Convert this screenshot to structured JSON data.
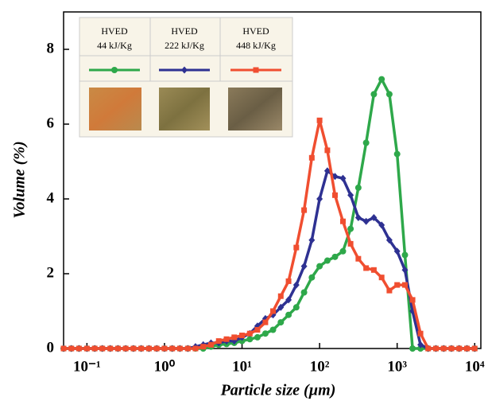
{
  "chart_data": {
    "type": "line",
    "x_scale": "log",
    "x_label": "Particle size (µm)",
    "y_label": "Volume (%)",
    "legend_title": "HVED",
    "x": [
      0.05,
      0.063,
      0.079,
      0.1,
      0.126,
      0.158,
      0.2,
      0.251,
      0.316,
      0.398,
      0.501,
      0.631,
      0.794,
      1,
      1.26,
      1.58,
      2,
      2.51,
      3.16,
      3.98,
      5.01,
      6.31,
      7.94,
      10,
      12.6,
      15.8,
      20,
      25.1,
      31.6,
      39.8,
      50.1,
      63.1,
      79.4,
      100,
      126,
      158,
      200,
      251,
      316,
      398,
      501,
      631,
      794,
      1000,
      1260,
      1580,
      2000,
      2510,
      3160,
      3980,
      5010,
      6310,
      7940,
      10000
    ],
    "series": [
      {
        "name": "44 kJ/Kg",
        "color": "#2ea84a",
        "marker": "circle",
        "values": [
          0,
          0,
          0,
          0,
          0,
          0,
          0,
          0,
          0,
          0,
          0,
          0,
          0,
          0,
          0,
          0,
          0,
          0,
          0,
          0.05,
          0.1,
          0.12,
          0.15,
          0.2,
          0.25,
          0.3,
          0.4,
          0.5,
          0.7,
          0.9,
          1.1,
          1.5,
          1.9,
          2.2,
          2.35,
          2.45,
          2.6,
          3.2,
          4.3,
          5.5,
          6.8,
          7.2,
          6.8,
          5.2,
          2.5,
          0,
          0,
          0,
          0,
          0,
          0,
          0,
          0,
          0
        ]
      },
      {
        "name": "222 kJ/Kg",
        "color": "#2e3192",
        "marker": "diamond",
        "values": [
          0,
          0,
          0,
          0,
          0,
          0,
          0,
          0,
          0,
          0,
          0,
          0,
          0,
          0,
          0,
          0,
          0,
          0.05,
          0.1,
          0.15,
          0.15,
          0.2,
          0.2,
          0.3,
          0.4,
          0.6,
          0.8,
          0.9,
          1.1,
          1.3,
          1.7,
          2.2,
          2.9,
          4.0,
          4.75,
          4.6,
          4.55,
          4.1,
          3.5,
          3.4,
          3.5,
          3.3,
          2.9,
          2.6,
          2.1,
          1.0,
          0.1,
          0,
          0,
          0,
          0,
          0,
          0,
          0
        ]
      },
      {
        "name": "448 kJ/Kg",
        "color": "#f04e30",
        "marker": "square",
        "values": [
          0,
          0,
          0,
          0,
          0,
          0,
          0,
          0,
          0,
          0,
          0,
          0,
          0,
          0,
          0,
          0,
          0,
          0,
          0.05,
          0.1,
          0.2,
          0.25,
          0.3,
          0.35,
          0.4,
          0.5,
          0.7,
          1.0,
          1.4,
          1.8,
          2.7,
          3.7,
          5.1,
          6.1,
          5.3,
          4.1,
          3.4,
          2.8,
          2.4,
          2.15,
          2.1,
          1.9,
          1.55,
          1.7,
          1.7,
          1.3,
          0.4,
          0,
          0,
          0,
          0,
          0,
          0,
          0
        ]
      }
    ],
    "xlim": [
      0.05,
      12000
    ],
    "xticks": [
      {
        "value": 0.1,
        "label": "10⁻¹"
      },
      {
        "value": 1,
        "label": "10⁰"
      },
      {
        "value": 10,
        "label": "10¹"
      },
      {
        "value": 100,
        "label": "10²"
      },
      {
        "value": 1000,
        "label": "10³"
      },
      {
        "value": 10000,
        "label": "10⁴"
      }
    ],
    "ylim": [
      0,
      9
    ],
    "yticks": [
      0,
      2,
      4,
      6,
      8
    ],
    "grid": false
  }
}
